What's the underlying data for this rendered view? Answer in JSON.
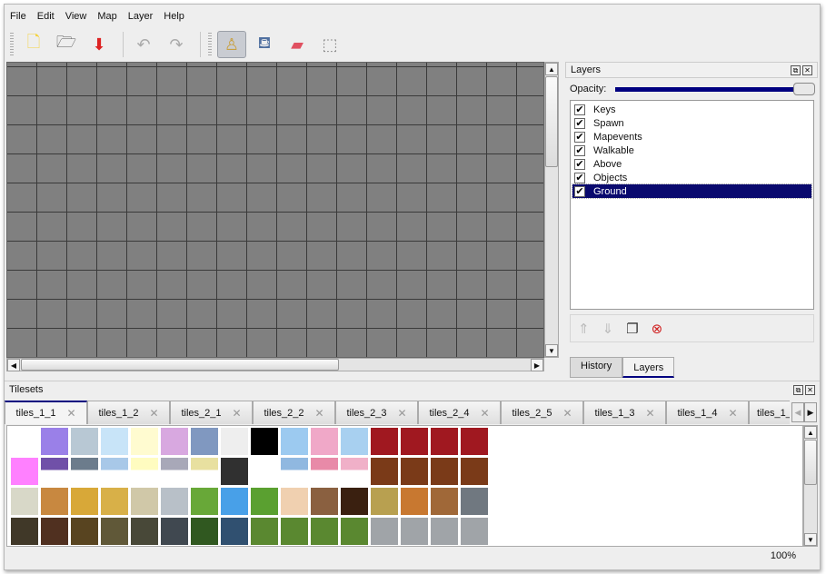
{
  "menu": [
    "File",
    "Edit",
    "View",
    "Map",
    "Layer",
    "Help"
  ],
  "toolbar": [
    {
      "name": "new-icon",
      "glyph": "🗋",
      "active": false
    },
    {
      "name": "open-icon",
      "glyph": "🗁",
      "active": false
    },
    {
      "name": "save-icon",
      "glyph": "⬇",
      "active": false
    },
    {
      "name": "undo-icon",
      "glyph": "↶",
      "active": false
    },
    {
      "name": "redo-icon",
      "glyph": "↷",
      "active": false
    },
    {
      "name": "stamp-brush-icon",
      "glyph": "♙",
      "active": true
    },
    {
      "name": "bucket-fill-icon",
      "glyph": "⛾",
      "active": false
    },
    {
      "name": "eraser-icon",
      "glyph": "▰",
      "active": false
    },
    {
      "name": "rect-select-icon",
      "glyph": "⬚",
      "active": false
    }
  ],
  "layers_dock": {
    "title": "Layers",
    "opacity_label": "Opacity:",
    "opacity": 1.0,
    "layers": [
      {
        "name": "Keys",
        "visible": true
      },
      {
        "name": "Spawn",
        "visible": true
      },
      {
        "name": "Mapevents",
        "visible": true
      },
      {
        "name": "Walkable",
        "visible": true
      },
      {
        "name": "Above",
        "visible": true
      },
      {
        "name": "Objects",
        "visible": true
      },
      {
        "name": "Ground",
        "visible": true,
        "selected": true
      }
    ],
    "buttons": [
      {
        "name": "raise-layer-icon",
        "glyph": "⇑"
      },
      {
        "name": "lower-layer-icon",
        "glyph": "⇓"
      },
      {
        "name": "duplicate-layer-icon",
        "glyph": "❐"
      },
      {
        "name": "delete-layer-icon",
        "glyph": "⊗"
      }
    ],
    "tabs": [
      "History",
      "Layers"
    ],
    "active_tab": "Layers"
  },
  "tilesets": {
    "title": "Tilesets",
    "tabs": [
      "tiles_1_1",
      "tiles_1_2",
      "tiles_2_1",
      "tiles_2_2",
      "tiles_2_3",
      "tiles_2_4",
      "tiles_2_5",
      "tiles_1_3",
      "tiles_1_4",
      "tiles_1_"
    ],
    "active_tab": "tiles_1_1"
  },
  "status": {
    "zoom": "100%"
  },
  "colors": {
    "accent": "#000080",
    "map_bg": "#808080",
    "delete": "#d02020"
  }
}
